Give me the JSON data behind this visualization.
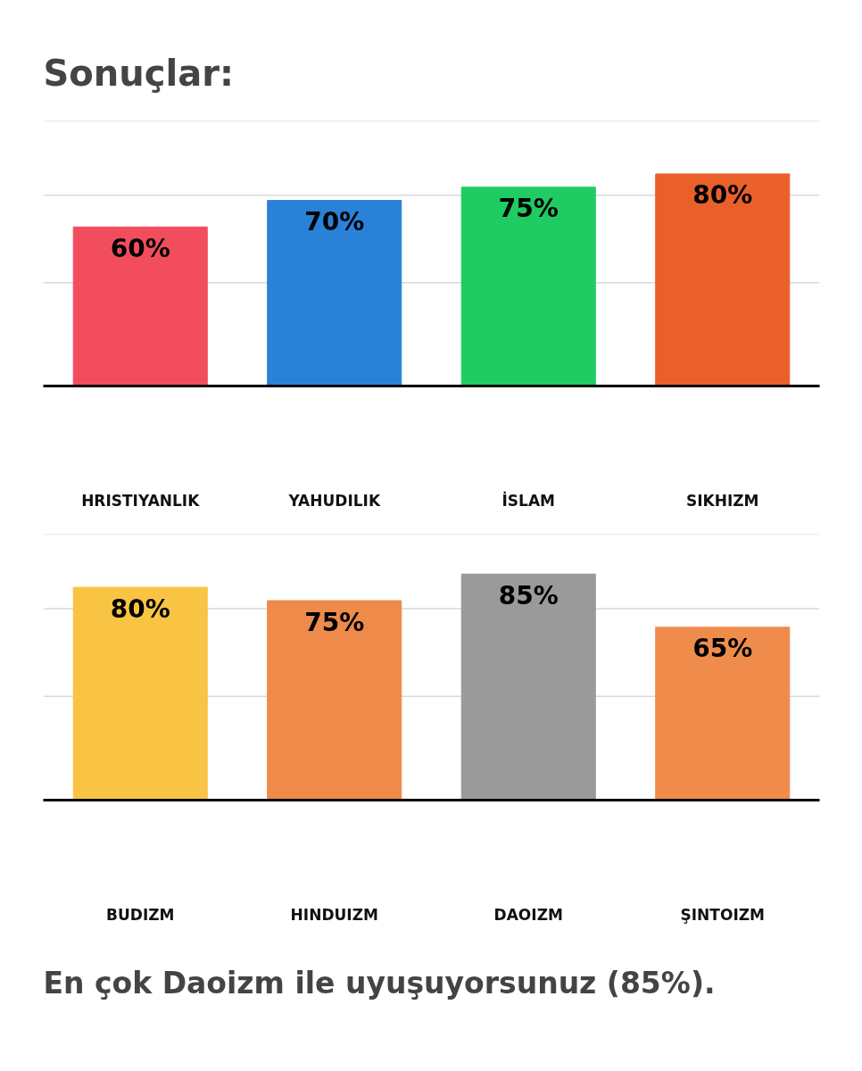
{
  "chart_data": [
    {
      "type": "bar",
      "title": "Sonuçlar:",
      "categories": [
        "HRISTIYANLIK",
        "YAHUDILIK",
        "İSLAM",
        "SIKHIZM"
      ],
      "values": [
        60,
        70,
        75,
        80
      ],
      "colors": [
        "#f24d5c",
        "#2a82d8",
        "#1fcb62",
        "#e9602a"
      ],
      "value_labels": [
        "60%",
        "70%",
        "75%",
        "80%"
      ],
      "ylim": [
        0,
        100
      ],
      "yticks": [
        {
          "value": 39,
          "label": null
        },
        {
          "value": 72,
          "label": null
        },
        {
          "value": 100,
          "label": null
        }
      ],
      "grid": "y",
      "tick_labels": "x"
    },
    {
      "type": "bar",
      "categories": [
        "BUDIZM",
        "HINDUIZM",
        "DAOIZM",
        "ŞINTOIZM"
      ],
      "values": [
        80,
        75,
        85,
        65
      ],
      "colors": [
        "#f9c443",
        "#ee8a4a",
        "#9a9a9a",
        "#ef8c4c"
      ],
      "value_labels": [
        "80%",
        "75%",
        "85%",
        "65%"
      ],
      "ylim": [
        0,
        100
      ],
      "yticks": [
        {
          "value": 39,
          "label": null
        },
        {
          "value": 72,
          "label": null
        },
        {
          "value": 100,
          "label": null
        }
      ],
      "grid": "y",
      "tick_labels": "x",
      "annotations": [
        "En çok Daoizm ile uyuşuyorsunuz (85%)."
      ]
    }
  ]
}
